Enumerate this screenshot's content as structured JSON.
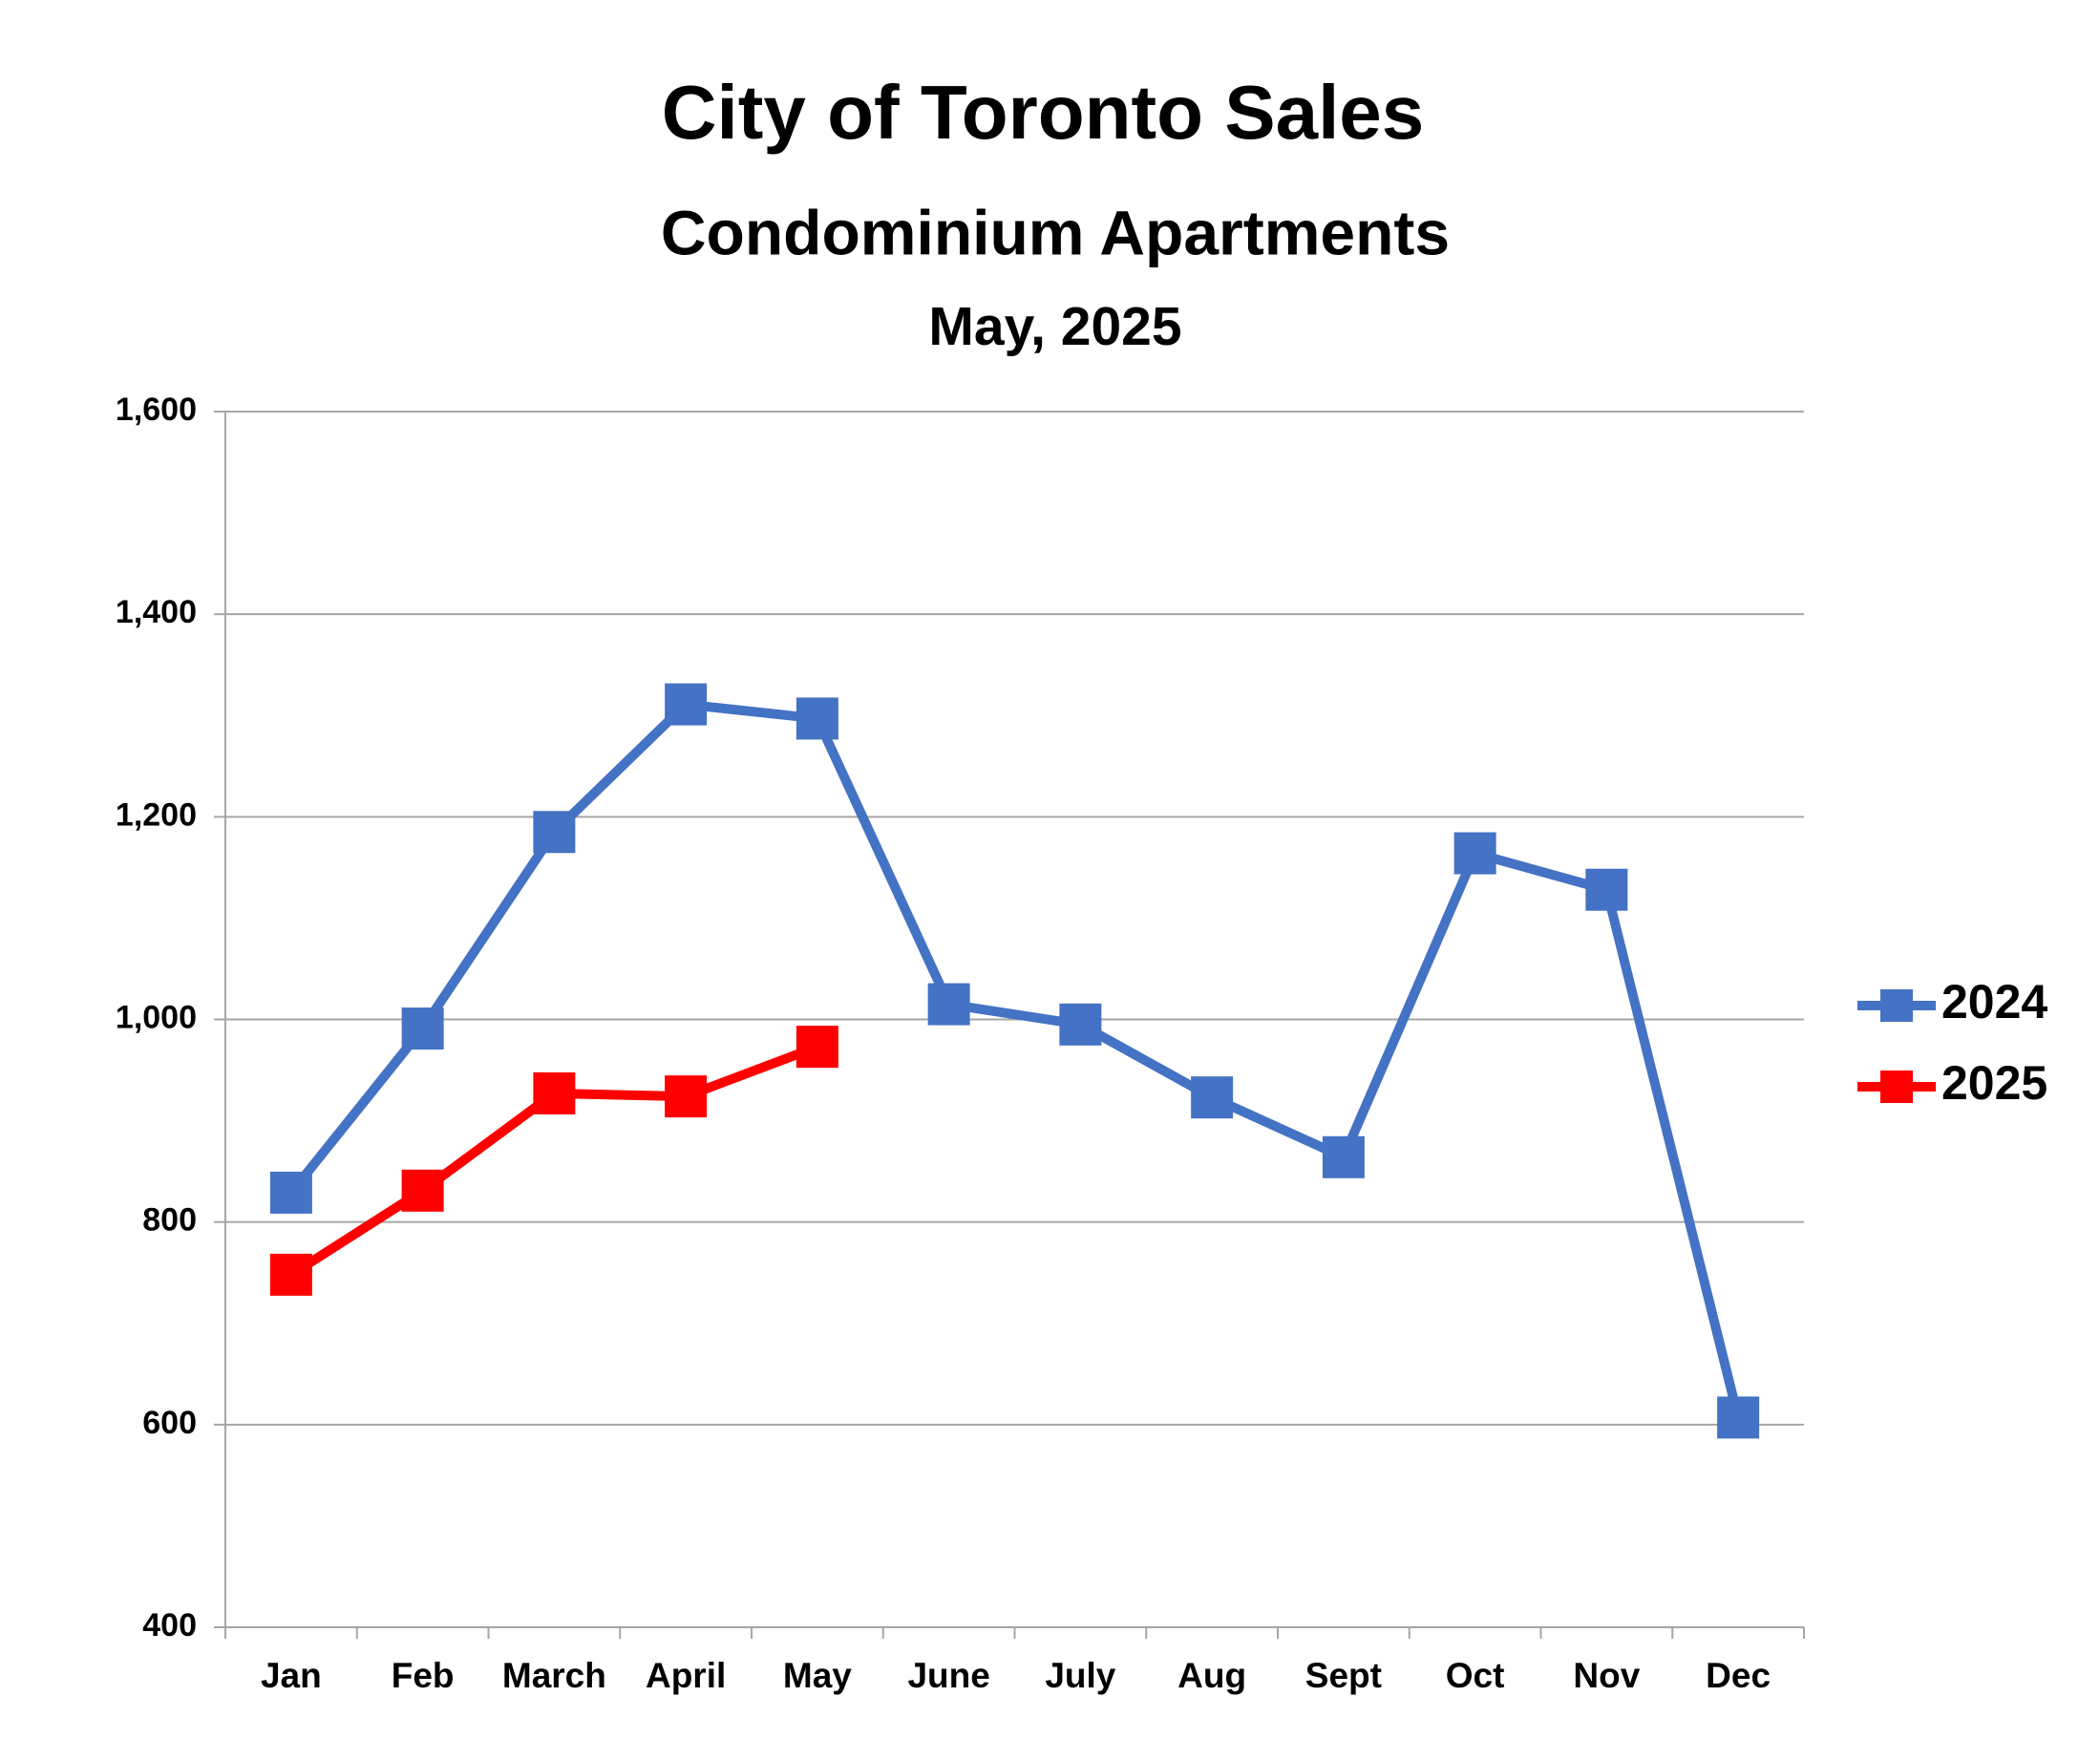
{
  "chart_data": {
    "type": "line",
    "title": "City of Toronto Sales",
    "subtitle": "Condominium Apartments",
    "date_label": "May, 2025",
    "categories": [
      "Jan",
      "Feb",
      "March",
      "April",
      "May",
      "June",
      "July",
      "Aug",
      "Sept",
      "Oct",
      "Nov",
      "Dec"
    ],
    "series": [
      {
        "name": "2024",
        "color": "#4472c4",
        "values": [
          829,
          991,
          1185,
          1311,
          1297,
          1015,
          995,
          923,
          864,
          1164,
          1128,
          607
        ]
      },
      {
        "name": "2025",
        "color": "#ff0000",
        "values": [
          748,
          831,
          927,
          924,
          973,
          null,
          null,
          null,
          null,
          null,
          null,
          null
        ]
      }
    ],
    "ylim": [
      400,
      1600
    ],
    "yticks": [
      {
        "value": 400,
        "label": "400"
      },
      {
        "value": 600,
        "label": "600"
      },
      {
        "value": 800,
        "label": "800"
      },
      {
        "value": 1000,
        "label": "1,000"
      },
      {
        "value": 1200,
        "label": "1,200"
      },
      {
        "value": 1400,
        "label": "1,400"
      },
      {
        "value": 1600,
        "label": "1,600"
      }
    ],
    "grid": true,
    "legend": "right"
  }
}
